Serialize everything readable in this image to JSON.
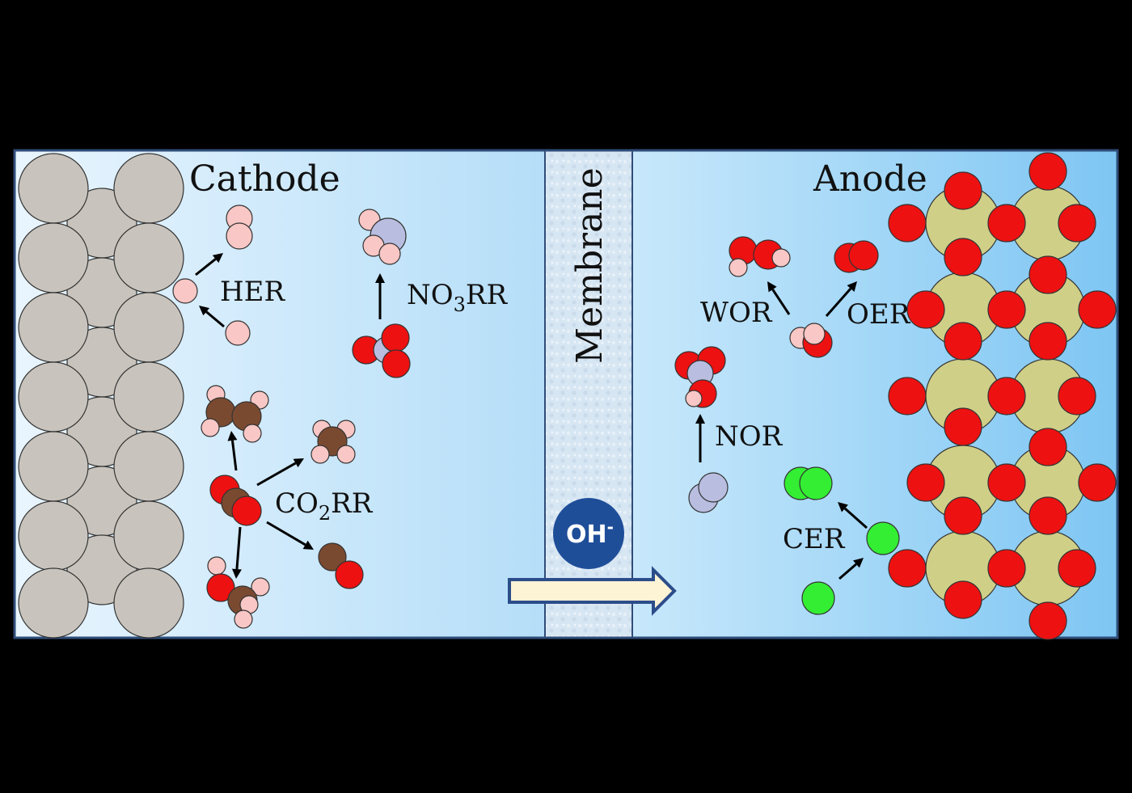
{
  "labels": {
    "cathode": "Cathode",
    "anode": "Anode",
    "membrane": "Membrane",
    "her": "HER",
    "no3rr_main": "NO",
    "no3rr_sub": "3",
    "no3rr_tail": "RR",
    "co2rr_main": "CO",
    "co2rr_sub": "2",
    "co2rr_tail": "RR",
    "wor": "WOR",
    "oer": "OER",
    "nor": "NOR",
    "cer": "CER",
    "ion_main": "OH",
    "ion_sup": "-"
  },
  "colors": {
    "hydrogen": "#f9c7c5",
    "oxygen": "#ee1111",
    "carbon": "#7a4a30",
    "nitrogen": "#b9bde0",
    "chlorine": "#33ee33",
    "cathode_metal": "#c8c4bd",
    "anode_metal": "#cfcf88",
    "ion_bubble": "#1f4e99",
    "arrow_fill": "#fdf3d5",
    "arrow_stroke": "#2b4d8a"
  }
}
